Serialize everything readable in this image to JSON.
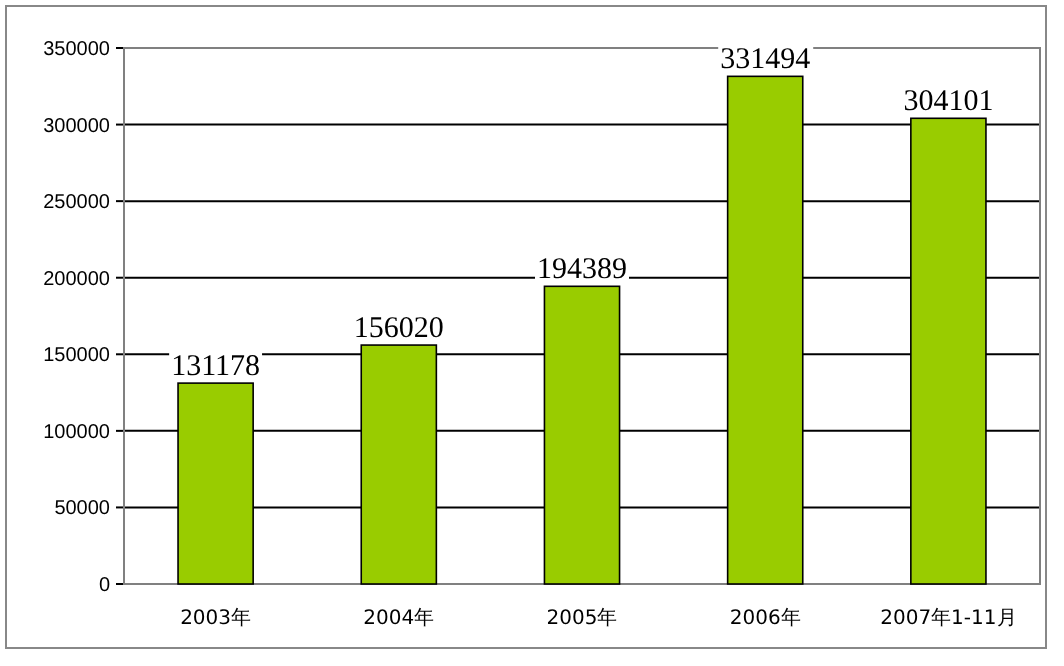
{
  "chart_data": {
    "type": "bar",
    "categories": [
      "2003年",
      "2004年",
      "2005年",
      "2006年",
      "2007年1-11月"
    ],
    "values": [
      131178,
      156020,
      194389,
      331494,
      304101
    ],
    "color": "#99cc00",
    "ylim": [
      0,
      350000
    ],
    "yticks": [
      0,
      50000,
      100000,
      150000,
      200000,
      250000,
      300000,
      350000
    ],
    "grid": "y",
    "data_labels": true
  }
}
